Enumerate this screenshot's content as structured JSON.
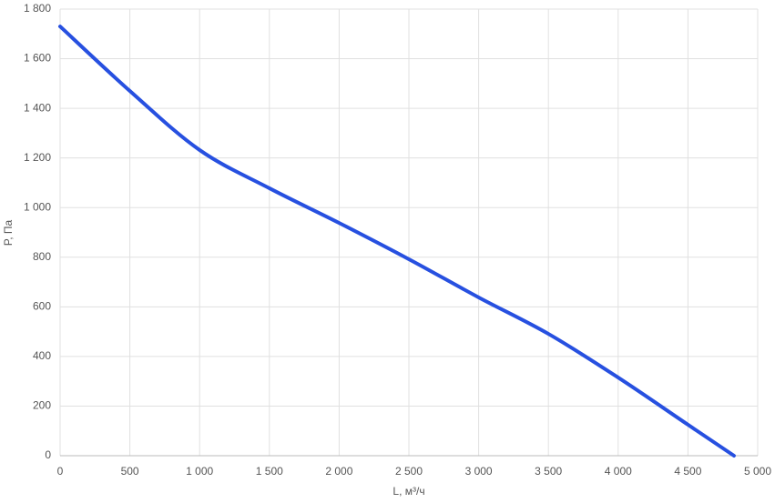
{
  "chart_data": {
    "type": "line",
    "x_label": "L, м³/ч",
    "y_label": "P, Па",
    "series": [
      {
        "color": "#2750e0",
        "x": [
          0,
          500,
          1000,
          1500,
          2000,
          2500,
          3000,
          3500,
          4000,
          4500,
          4830
        ],
        "values": [
          1730,
          1470,
          1232,
          1078,
          938,
          792,
          638,
          491,
          315,
          125,
          0
        ]
      }
    ],
    "xlim": [
      0,
      5000
    ],
    "xticks": [
      0,
      500,
      {
        "value": 1000,
        "label": "1 000"
      },
      {
        "value": 1500,
        "label": "1 500"
      },
      {
        "value": 2000,
        "label": "2 000"
      },
      {
        "value": 2500,
        "label": "2 500"
      },
      {
        "value": 3000,
        "label": "3 000"
      },
      {
        "value": 3500,
        "label": "3 500"
      },
      {
        "value": 4000,
        "label": "4 000"
      },
      {
        "value": 4500,
        "label": "4 500"
      },
      {
        "value": 5000,
        "label": "5 000"
      }
    ],
    "ylim": [
      0,
      1800
    ],
    "yticks": [
      0,
      200,
      400,
      600,
      800,
      {
        "value": 1000,
        "label": "1 000"
      },
      {
        "value": 1200,
        "label": "1 200"
      },
      {
        "value": 1400,
        "label": "1 400"
      },
      {
        "value": 1600,
        "label": "1 600"
      },
      {
        "value": 1800,
        "label": "1 800"
      }
    ],
    "grid": true
  }
}
